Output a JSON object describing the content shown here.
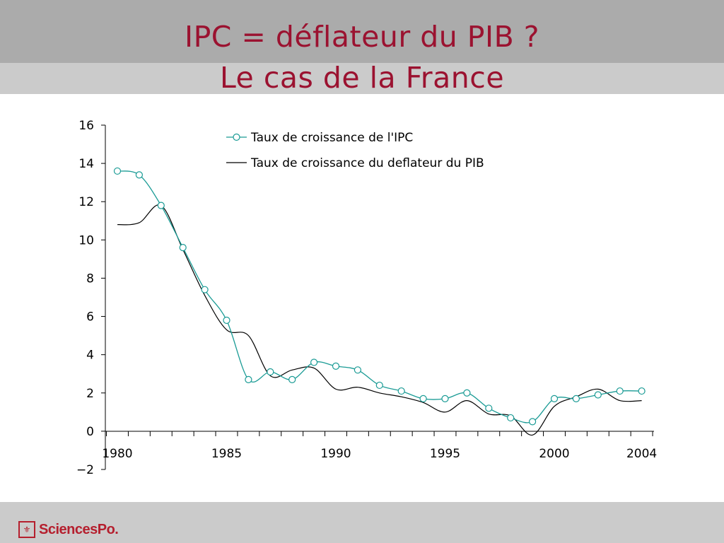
{
  "slide": {
    "title_line1": "IPC = déflateur du PIB ?",
    "title_line2": "Le cas de la France"
  },
  "footer": {
    "logo_text": "SciencesPo."
  },
  "colors": {
    "title": "#9b1230",
    "ipc": "#1a9b95",
    "deflateur": "#000000",
    "brand": "#b51f2e"
  },
  "chart_data": {
    "type": "line",
    "title": "",
    "xlabel": "",
    "ylabel": "",
    "ylim": [
      -2,
      16
    ],
    "yticks": [
      -2,
      0,
      2,
      4,
      6,
      8,
      10,
      12,
      14,
      16
    ],
    "ytick_labels": [
      "−2",
      "0",
      "2",
      "4",
      "6",
      "8",
      "10",
      "12",
      "14",
      "16"
    ],
    "xlim": [
      1979.5,
      2004.5
    ],
    "xtick_labels": [
      "1980",
      "1985",
      "1990",
      "1995",
      "2000",
      "2004"
    ],
    "xtick_values": [
      1980,
      1985,
      1990,
      1995,
      2000,
      2004
    ],
    "grid": false,
    "legend": "top-center",
    "series": [
      {
        "name": "Taux de croissance de l'IPC",
        "marker": "circle",
        "x": [
          1980,
          1981,
          1982,
          1983,
          1984,
          1985,
          1986,
          1987,
          1988,
          1989,
          1990,
          1991,
          1992,
          1993,
          1994,
          1995,
          1996,
          1997,
          1998,
          1999,
          2000,
          2001,
          2002,
          2003,
          2004
        ],
        "y": [
          13.6,
          13.4,
          11.8,
          9.6,
          7.4,
          5.8,
          2.7,
          3.1,
          2.7,
          3.6,
          3.4,
          3.2,
          2.4,
          2.1,
          1.7,
          1.7,
          2.0,
          1.2,
          0.7,
          0.5,
          1.7,
          1.7,
          1.9,
          2.1,
          2.1
        ]
      },
      {
        "name": "Taux de croissance du deflateur du PIB",
        "marker": "none",
        "x": [
          1980,
          1981,
          1982,
          1983,
          1984,
          1985,
          1986,
          1987,
          1988,
          1989,
          1990,
          1991,
          1992,
          1993,
          1994,
          1995,
          1996,
          1997,
          1998,
          1999,
          2000,
          2001,
          2002,
          2003,
          2004
        ],
        "y": [
          10.8,
          10.9,
          11.8,
          9.5,
          7.1,
          5.3,
          5.0,
          2.9,
          3.2,
          3.3,
          2.2,
          2.3,
          2.0,
          1.8,
          1.5,
          1.0,
          1.6,
          0.9,
          0.8,
          -0.2,
          1.3,
          1.8,
          2.2,
          1.6,
          1.6
        ]
      }
    ]
  }
}
